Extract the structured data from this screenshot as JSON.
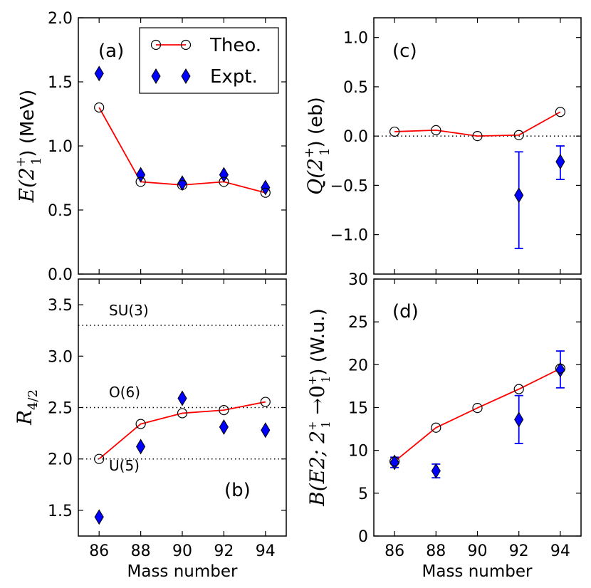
{
  "chart_data": [
    {
      "id": "a",
      "type": "line",
      "panel_label": "(a)",
      "ylabel": "E(2",
      "ylabel_sup": "+",
      "ylabel_sub": "1",
      "ylabel_tail": ") (MeV)",
      "ylim": [
        0.0,
        2.0
      ],
      "yticks": [
        "0.0",
        "0.5",
        "1.0",
        "1.5",
        "2.0"
      ],
      "xlim": [
        85,
        95
      ],
      "x": [
        86,
        88,
        90,
        92,
        94
      ],
      "series": [
        {
          "name": "Theo.",
          "values": [
            1.3,
            0.72,
            0.695,
            0.72,
            0.635
          ]
        },
        {
          "name": "Expt.",
          "values": [
            1.565,
            0.775,
            0.71,
            0.775,
            0.675
          ]
        }
      ],
      "legend": {
        "position": "top-right",
        "entries": [
          "Theo.",
          "Expt."
        ]
      }
    },
    {
      "id": "b",
      "type": "line",
      "panel_label": "(b)",
      "ylabel": "R",
      "ylabel_sub": "4/2",
      "ylim": [
        1.25,
        3.75
      ],
      "yticks": [
        "1.5",
        "2.0",
        "2.5",
        "3.0",
        "3.5"
      ],
      "xlim": [
        85,
        95
      ],
      "xlabel": "Mass number",
      "xticks": [
        "86",
        "88",
        "90",
        "92",
        "94"
      ],
      "x": [
        86,
        88,
        90,
        92,
        94
      ],
      "series": [
        {
          "name": "Theo.",
          "values": [
            2.0,
            2.34,
            2.445,
            2.475,
            2.555
          ]
        },
        {
          "name": "Expt.",
          "values": [
            1.435,
            2.12,
            2.59,
            2.31,
            2.28
          ]
        }
      ],
      "reference_lines": [
        {
          "label": "SU(3)",
          "value": 3.3
        },
        {
          "label": "O(6)",
          "value": 2.5
        },
        {
          "label": "U(5)",
          "value": 2.0
        }
      ]
    },
    {
      "id": "c",
      "type": "line",
      "panel_label": "(c)",
      "ylabel": "Q(2",
      "ylabel_sup": "+",
      "ylabel_sub": "1",
      "ylabel_tail": ") (eb)",
      "ylim": [
        -1.4,
        1.2
      ],
      "yticks": [
        "−1.0",
        "−0.5",
        "0.0",
        "0.5",
        "1.0"
      ],
      "xlim": [
        85,
        95
      ],
      "x": [
        86,
        88,
        90,
        92,
        94
      ],
      "series": [
        {
          "name": "Theo.",
          "values": [
            0.045,
            0.06,
            0.0,
            0.01,
            0.245
          ]
        },
        {
          "name": "Expt.",
          "x": [
            92,
            94
          ],
          "values": [
            -0.6,
            -0.26
          ],
          "err_low": [
            0.54,
            0.18
          ],
          "err_high": [
            0.44,
            0.16
          ]
        }
      ],
      "reference_lines": [
        {
          "label": "",
          "value": 0.0
        }
      ]
    },
    {
      "id": "d",
      "type": "line",
      "panel_label": "(d)",
      "ylabel": "B(E2; 2",
      "ylabel_sup1": "+",
      "ylabel_sub1": "1",
      "ylabel_mid": " →0",
      "ylabel_sup2": "+",
      "ylabel_sub2": "1",
      "ylabel_tail": ") (W.u.)",
      "ylim": [
        0,
        30
      ],
      "yticks": [
        "0",
        "5",
        "10",
        "15",
        "20",
        "25",
        "30"
      ],
      "xlim": [
        85,
        95
      ],
      "xlabel": "Mass number",
      "xticks": [
        "86",
        "88",
        "90",
        "92",
        "94"
      ],
      "x": [
        86,
        88,
        90,
        92,
        94
      ],
      "series": [
        {
          "name": "Theo.",
          "values": [
            8.7,
            12.65,
            14.95,
            17.15,
            19.55
          ]
        },
        {
          "name": "Expt.",
          "x": [
            86,
            88,
            92,
            94
          ],
          "values": [
            8.6,
            7.6,
            13.6,
            19.4
          ],
          "err_low": [
            0.6,
            0.8,
            2.8,
            2.1
          ],
          "err_high": [
            0.6,
            0.8,
            2.8,
            2.2
          ]
        }
      ]
    }
  ],
  "colors": {
    "theo_line": "#ff0000",
    "expt_fill": "#0000ff",
    "errorbar": "#0000ff"
  }
}
